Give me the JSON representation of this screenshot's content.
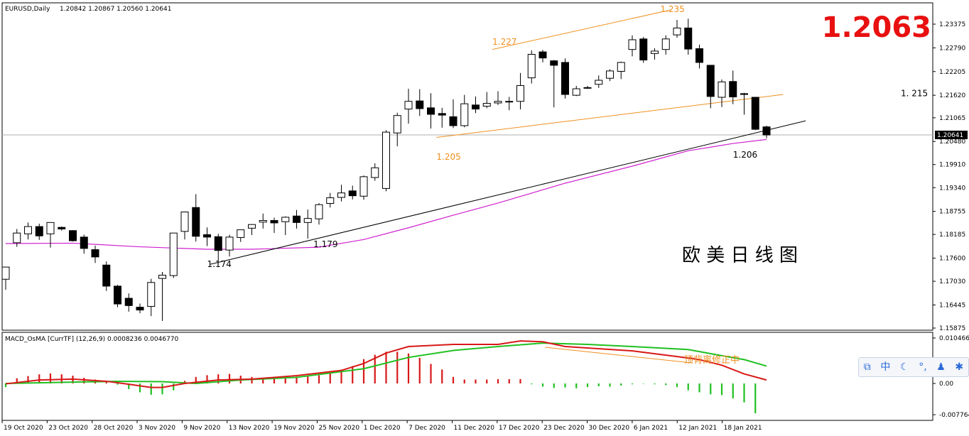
{
  "header": {
    "symbol": "EURUSD,Daily",
    "ohlc": "1.20842 1.20867 1.20560 1.20641"
  },
  "big_price": "1.2063",
  "annotation_title": "欧 美 日 线 图",
  "price_marker": "1.20641",
  "macd_header": "MACD_OsMA [CurrTF] (12,26,9) 0.0008236 0.0046770",
  "macd_note": "顶背离修正中",
  "ime_toolbar": {
    "lang": "中",
    "moon": "☾",
    "dot": "°,",
    "user": "♟",
    "gear": "✱",
    "box": "⧉"
  },
  "colors": {
    "bull_candle": "#ffffff",
    "bear_candle": "#000000",
    "ma": "#d020d0",
    "orange": "#f09020",
    "macd_pos": "#d81818",
    "macd_neg": "#20c020",
    "big_price": "#e81010"
  },
  "chart_data": [
    {
      "type": "candlestick",
      "title": "EURUSD,Daily",
      "ylim": [
        1.1566,
        1.2377
      ],
      "y_ticks": [
        "1.23375",
        "1.22790",
        "1.22205",
        "1.21620",
        "1.21065",
        "1.20480",
        "1.19910",
        "1.19340",
        "1.18755",
        "1.18185",
        "1.17600",
        "1.17030",
        "1.16445",
        "1.15875"
      ],
      "x_ticks": [
        "19 Oct 2020",
        "23 Oct 2020",
        "28 Oct 2020",
        "3 Nov 2020",
        "9 Nov 2020",
        "13 Nov 2020",
        "19 Nov 2020",
        "25 Nov 2020",
        "1 Dec 2020",
        "7 Dec 2020",
        "11 Dec 2020",
        "17 Dec 2020",
        "23 Dec 2020",
        "30 Dec 2020",
        "6 Jan 2021",
        "12 Jan 2021",
        "18 Jan 2021"
      ],
      "candles": [
        {
          "o": 1.1708,
          "h": 1.1733,
          "l": 1.1682,
          "c": 1.1738
        },
        {
          "o": 1.1798,
          "h": 1.1832,
          "l": 1.1788,
          "c": 1.1822
        },
        {
          "o": 1.182,
          "h": 1.1848,
          "l": 1.1806,
          "c": 1.1838
        },
        {
          "o": 1.1838,
          "h": 1.1845,
          "l": 1.1805,
          "c": 1.1815
        },
        {
          "o": 1.182,
          "h": 1.1848,
          "l": 1.1786,
          "c": 1.1848
        },
        {
          "o": 1.1836,
          "h": 1.1838,
          "l": 1.1828,
          "c": 1.1832
        },
        {
          "o": 1.1828,
          "h": 1.1829,
          "l": 1.1801,
          "c": 1.1803
        },
        {
          "o": 1.1812,
          "h": 1.1818,
          "l": 1.1771,
          "c": 1.1784
        },
        {
          "o": 1.1781,
          "h": 1.1791,
          "l": 1.1748,
          "c": 1.1763
        },
        {
          "o": 1.1743,
          "h": 1.1752,
          "l": 1.1679,
          "c": 1.1691
        },
        {
          "o": 1.1691,
          "h": 1.1694,
          "l": 1.1639,
          "c": 1.1647
        },
        {
          "o": 1.1661,
          "h": 1.1673,
          "l": 1.1628,
          "c": 1.1643
        },
        {
          "o": 1.1639,
          "h": 1.1648,
          "l": 1.1624,
          "c": 1.1632
        },
        {
          "o": 1.1641,
          "h": 1.1709,
          "l": 1.1617,
          "c": 1.17
        },
        {
          "o": 1.171,
          "h": 1.1726,
          "l": 1.1605,
          "c": 1.1718
        },
        {
          "o": 1.1717,
          "h": 1.1817,
          "l": 1.1711,
          "c": 1.1822
        },
        {
          "o": 1.1826,
          "h": 1.1875,
          "l": 1.1806,
          "c": 1.1874
        },
        {
          "o": 1.1885,
          "h": 1.1918,
          "l": 1.1801,
          "c": 1.1814
        },
        {
          "o": 1.1818,
          "h": 1.1836,
          "l": 1.179,
          "c": 1.1812
        },
        {
          "o": 1.1813,
          "h": 1.182,
          "l": 1.1753,
          "c": 1.1779
        },
        {
          "o": 1.178,
          "h": 1.1818,
          "l": 1.1764,
          "c": 1.1812
        },
        {
          "o": 1.1811,
          "h": 1.1829,
          "l": 1.18,
          "c": 1.183
        },
        {
          "o": 1.1834,
          "h": 1.1844,
          "l": 1.1817,
          "c": 1.1843
        },
        {
          "o": 1.1849,
          "h": 1.187,
          "l": 1.1833,
          "c": 1.1853
        },
        {
          "o": 1.1853,
          "h": 1.186,
          "l": 1.1822,
          "c": 1.1847
        },
        {
          "o": 1.185,
          "h": 1.1863,
          "l": 1.1817,
          "c": 1.1861
        },
        {
          "o": 1.1864,
          "h": 1.1879,
          "l": 1.1833,
          "c": 1.1848
        },
        {
          "o": 1.1848,
          "h": 1.188,
          "l": 1.1808,
          "c": 1.1858
        },
        {
          "o": 1.1857,
          "h": 1.1896,
          "l": 1.1843,
          "c": 1.1892
        },
        {
          "o": 1.1895,
          "h": 1.1921,
          "l": 1.1885,
          "c": 1.1909
        },
        {
          "o": 1.191,
          "h": 1.1941,
          "l": 1.19,
          "c": 1.1921
        },
        {
          "o": 1.1926,
          "h": 1.1939,
          "l": 1.1905,
          "c": 1.1914
        },
        {
          "o": 1.1913,
          "h": 1.1964,
          "l": 1.1904,
          "c": 1.1961
        },
        {
          "o": 1.1959,
          "h": 1.1994,
          "l": 1.1951,
          "c": 1.1983
        },
        {
          "o": 1.1932,
          "h": 1.2076,
          "l": 1.1925,
          "c": 1.2071
        },
        {
          "o": 1.2069,
          "h": 1.2119,
          "l": 1.2036,
          "c": 1.2112
        },
        {
          "o": 1.2128,
          "h": 1.2178,
          "l": 1.2092,
          "c": 1.2147
        },
        {
          "o": 1.2148,
          "h": 1.2177,
          "l": 1.2111,
          "c": 1.2129
        },
        {
          "o": 1.2131,
          "h": 1.2167,
          "l": 1.208,
          "c": 1.2115
        },
        {
          "o": 1.2117,
          "h": 1.2131,
          "l": 1.2082,
          "c": 1.2113
        },
        {
          "o": 1.2109,
          "h": 1.2152,
          "l": 1.2081,
          "c": 1.2087
        },
        {
          "o": 1.2087,
          "h": 1.2163,
          "l": 1.2083,
          "c": 1.2141
        },
        {
          "o": 1.2138,
          "h": 1.2159,
          "l": 1.2118,
          "c": 1.2128
        },
        {
          "o": 1.2135,
          "h": 1.217,
          "l": 1.213,
          "c": 1.2142
        },
        {
          "o": 1.2143,
          "h": 1.2172,
          "l": 1.2138,
          "c": 1.2147
        },
        {
          "o": 1.2147,
          "h": 1.2158,
          "l": 1.2125,
          "c": 1.2146
        },
        {
          "o": 1.2147,
          "h": 1.2217,
          "l": 1.2127,
          "c": 1.2186
        },
        {
          "o": 1.2205,
          "h": 1.2273,
          "l": 1.2191,
          "c": 1.2263
        },
        {
          "o": 1.2269,
          "h": 1.2274,
          "l": 1.2243,
          "c": 1.2254
        },
        {
          "o": 1.2247,
          "h": 1.2249,
          "l": 1.2132,
          "c": 1.2236
        },
        {
          "o": 1.2243,
          "h": 1.2253,
          "l": 1.2154,
          "c": 1.2164
        },
        {
          "o": 1.2162,
          "h": 1.2185,
          "l": 1.216,
          "c": 1.2178
        },
        {
          "o": 1.218,
          "h": 1.2185,
          "l": 1.2178,
          "c": 1.2181
        },
        {
          "o": 1.2189,
          "h": 1.2211,
          "l": 1.218,
          "c": 1.2199
        },
        {
          "o": 1.2204,
          "h": 1.2226,
          "l": 1.2197,
          "c": 1.2222
        },
        {
          "o": 1.2221,
          "h": 1.2245,
          "l": 1.2202,
          "c": 1.2243
        },
        {
          "o": 1.2275,
          "h": 1.231,
          "l": 1.2258,
          "c": 1.2299
        },
        {
          "o": 1.2301,
          "h": 1.2306,
          "l": 1.2242,
          "c": 1.2249
        },
        {
          "o": 1.2265,
          "h": 1.2278,
          "l": 1.225,
          "c": 1.2271
        },
        {
          "o": 1.2275,
          "h": 1.231,
          "l": 1.2262,
          "c": 1.2301
        },
        {
          "o": 1.2311,
          "h": 1.2348,
          "l": 1.2304,
          "c": 1.2328
        },
        {
          "o": 1.2328,
          "h": 1.2351,
          "l": 1.2262,
          "c": 1.2276
        },
        {
          "o": 1.2277,
          "h": 1.2287,
          "l": 1.2228,
          "c": 1.2243
        },
        {
          "o": 1.2236,
          "h": 1.2236,
          "l": 1.213,
          "c": 1.2159
        },
        {
          "o": 1.2157,
          "h": 1.2201,
          "l": 1.2133,
          "c": 1.2195
        },
        {
          "o": 1.2196,
          "h": 1.2223,
          "l": 1.214,
          "c": 1.2158
        },
        {
          "o": 1.2166,
          "h": 1.2168,
          "l": 1.2114,
          "c": 1.2164
        },
        {
          "o": 1.2157,
          "h": 1.2158,
          "l": 1.2076,
          "c": 1.2078
        },
        {
          "o": 1.2084,
          "h": 1.2087,
          "l": 1.2056,
          "c": 1.2064
        }
      ],
      "ma_label": "MA",
      "ma": [
        [
          0,
          1.1796
        ],
        [
          6,
          1.1797
        ],
        [
          12,
          1.1788
        ],
        [
          18,
          1.1782
        ],
        [
          22,
          1.1782
        ],
        [
          28,
          1.1787
        ],
        [
          32,
          1.1806
        ],
        [
          36,
          1.1835
        ],
        [
          40,
          1.1866
        ],
        [
          44,
          1.1896
        ],
        [
          50,
          1.1945
        ],
        [
          56,
          1.1987
        ],
        [
          61,
          1.2025
        ],
        [
          65,
          1.2043
        ],
        [
          68,
          1.2053
        ]
      ],
      "annotations": [
        {
          "text": "1.235",
          "x": 58.5,
          "y": 1.2367,
          "color": "#f09020"
        },
        {
          "text": "1.227",
          "x": 43.5,
          "y": 1.2287,
          "color": "#f09020"
        },
        {
          "text": "1.205",
          "x": 38.5,
          "y": 1.2003,
          "color": "#f09020"
        },
        {
          "text": "1.206",
          "x": 65,
          "y": 1.2008,
          "color": "#000000"
        },
        {
          "text": "1.179",
          "x": 27.5,
          "y": 1.1787,
          "color": "#000000"
        },
        {
          "text": "1.174",
          "x": 18,
          "y": 1.1738,
          "color": "#000000"
        },
        {
          "text": "1. 215",
          "x": 80,
          "y": 1.216,
          "color": "#000000"
        }
      ],
      "trendlines": [
        {
          "from": [
            18.3,
            1.1745
          ],
          "to": [
            71.5,
            1.2099
          ],
          "color": "#000000"
        },
        {
          "from": [
            43.5,
            1.2275
          ],
          "to": [
            59.5,
            1.2373
          ],
          "color": "#f09020"
        },
        {
          "from": [
            38.5,
            1.2058
          ],
          "to": [
            69.5,
            1.2164
          ],
          "color": "#f09020"
        }
      ]
    },
    {
      "type": "bar+line",
      "title": "MACD_OsMA [CurrTF] (12,26,9)",
      "ylim": [
        -0.00776,
        0.010467
      ],
      "y_ticks": [
        "0.0104665",
        "0.00",
        "-0.0077644"
      ],
      "histogram": [
        -0.0009,
        0.0012,
        0.0017,
        0.0021,
        0.0023,
        0.0021,
        0.0018,
        0.0013,
        0.0009,
        0.0003,
        -0.0003,
        -0.0014,
        -0.0022,
        -0.0028,
        -0.0027,
        -0.0017,
        0.0006,
        0.0015,
        0.0019,
        0.0021,
        0.0022,
        0.0018,
        0.0015,
        0.0013,
        0.0012,
        0.0015,
        0.0016,
        0.0016,
        0.0019,
        0.0024,
        0.0032,
        0.004,
        0.0056,
        0.0066,
        0.0073,
        0.0073,
        0.0069,
        0.0059,
        0.0045,
        0.0032,
        0.0015,
        0.0009,
        0.0009,
        0.0009,
        0.001,
        0.001,
        0.001,
        -0.0002,
        -0.0008,
        -0.0011,
        -0.001,
        -0.0012,
        -0.0009,
        -0.0007,
        -0.0008,
        -0.0005,
        -0.0002,
        -0.0001,
        -0.0002,
        -0.0004,
        -0.0009,
        -0.0017,
        -0.0022,
        -0.0027,
        -0.0029,
        -0.0037,
        -0.0047,
        -0.0074
      ],
      "signal_red": [
        [
          0,
          -0.0001
        ],
        [
          3,
          0.0008
        ],
        [
          6,
          0.001
        ],
        [
          9,
          0.0005
        ],
        [
          11,
          -0.0002
        ],
        [
          13,
          -0.001
        ],
        [
          14,
          -0.001
        ],
        [
          16,
          0.0
        ],
        [
          19,
          0.0008
        ],
        [
          22,
          0.001
        ],
        [
          26,
          0.0018
        ],
        [
          30,
          0.003
        ],
        [
          32,
          0.0046
        ],
        [
          34,
          0.007
        ],
        [
          36,
          0.0085
        ],
        [
          40,
          0.009
        ],
        [
          44,
          0.009
        ],
        [
          46,
          0.0098
        ],
        [
          48,
          0.0096
        ],
        [
          50,
          0.0085
        ],
        [
          56,
          0.0075
        ],
        [
          60,
          0.0062
        ],
        [
          62,
          0.0055
        ],
        [
          64,
          0.0042
        ],
        [
          66,
          0.0022
        ],
        [
          68,
          0.0008
        ]
      ],
      "signal_green": [
        [
          0,
          0.0
        ],
        [
          4,
          0.0002
        ],
        [
          10,
          0.0005
        ],
        [
          14,
          0.0004
        ],
        [
          17,
          0.0
        ],
        [
          21,
          0.0008
        ],
        [
          26,
          0.0014
        ],
        [
          32,
          0.0034
        ],
        [
          36,
          0.006
        ],
        [
          40,
          0.0076
        ],
        [
          44,
          0.0085
        ],
        [
          48,
          0.0093
        ],
        [
          52,
          0.009
        ],
        [
          56,
          0.0085
        ],
        [
          61,
          0.0078
        ],
        [
          64,
          0.0064
        ],
        [
          66,
          0.0055
        ],
        [
          68,
          0.004
        ]
      ]
    }
  ]
}
